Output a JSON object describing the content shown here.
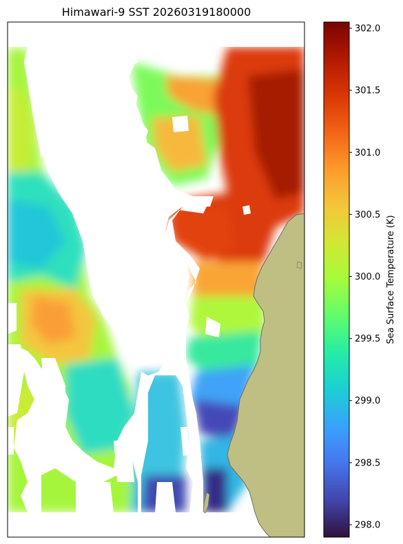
{
  "map": {
    "title": "Himawari-9 SST 20260319180000",
    "land_color": "#bfbf84",
    "coast_color": "#6b6b6b",
    "no_data_color": "#ffffff"
  },
  "colorbar": {
    "label": "Sea Surface Temperature (K)",
    "min": 297.9,
    "max": 302.05,
    "ticks": [
      "298.0",
      "298.5",
      "299.0",
      "299.5",
      "300.0",
      "300.5",
      "301.0",
      "301.5",
      "302.0"
    ],
    "colormap": "turbo",
    "stops": [
      "#30123b",
      "#4145ab",
      "#4675ed",
      "#39a2fc",
      "#1bcfd4",
      "#24eca6",
      "#61fc6c",
      "#a4fc3b",
      "#d1e834",
      "#f3c63a",
      "#fe9b2d",
      "#f36315",
      "#d93806",
      "#b11901",
      "#7a0402"
    ]
  }
}
